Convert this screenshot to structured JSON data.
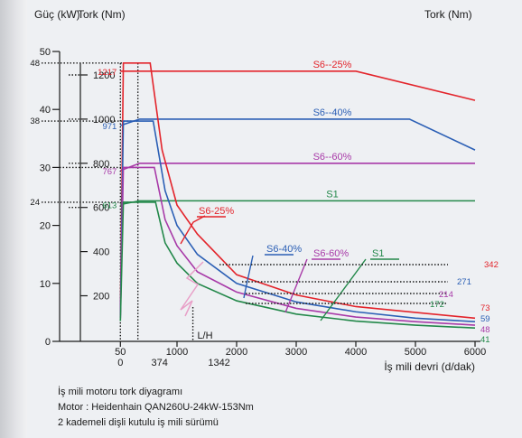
{
  "chart_data": {
    "type": "line",
    "title": "",
    "axes": {
      "left_power": {
        "label": "Güç (kW)",
        "ticks": [
          0,
          10,
          20,
          30,
          40,
          50
        ],
        "extra_ticks": [
          24,
          38,
          48
        ],
        "range": [
          0,
          50
        ]
      },
      "left_torque": {
        "label": "Tork (Nm)",
        "ticks": [
          200,
          400,
          600,
          800,
          1000,
          1200
        ]
      },
      "right_torque": {
        "label": "Tork (Nm)"
      },
      "x": {
        "label": "İş mili devri (d/dak)",
        "ticks": [
          50,
          1000,
          2000,
          3000,
          4000,
          5000,
          6000
        ],
        "range": [
          0,
          6000
        ],
        "sub_ticks": [
          "0",
          "374",
          "1342"
        ],
        "gear_mark": "L/H"
      }
    },
    "colors": {
      "S6-25%": "#e3242b",
      "S6-40%": "#2b5fb5",
      "S6-60%": "#a83aa8",
      "S1": "#23884a"
    },
    "torque_series": [
      {
        "name": "S6--25%",
        "color": "#e3242b",
        "start_torque": 1217,
        "end_torque": 342,
        "x": [
          50,
          374,
          4000,
          6000
        ],
        "y": [
          1217,
          1217,
          1217,
          1085
        ]
      },
      {
        "name": "S6--40%",
        "color": "#2b5fb5",
        "start_torque": 971,
        "end_torque": 271,
        "x": [
          50,
          374,
          4900,
          6000
        ],
        "y": [
          971,
          1000,
          1000,
          860
        ]
      },
      {
        "name": "S6--60%",
        "color": "#a83aa8",
        "start_torque": 767,
        "end_torque": 214,
        "x": [
          50,
          374,
          6000
        ],
        "y": [
          767,
          800,
          800
        ]
      },
      {
        "name": "S1",
        "color": "#23884a",
        "start_torque": 613,
        "end_torque": 172,
        "x": [
          50,
          374,
          6000
        ],
        "y": [
          613,
          630,
          630
        ]
      }
    ],
    "power_series": [
      {
        "name": "S6-25%",
        "color": "#e3242b",
        "end_power": 73,
        "x": [
          50,
          100,
          374,
          550,
          750,
          1000,
          1342,
          2000,
          3000,
          4000,
          5000,
          6000
        ],
        "y": [
          5,
          48,
          48,
          48,
          33,
          23.5,
          18.5,
          11.5,
          8,
          6,
          5,
          4
        ]
      },
      {
        "name": "S6-40%",
        "color": "#2b5fb5",
        "end_power": 59,
        "x": [
          50,
          100,
          374,
          600,
          800,
          1000,
          1342,
          2000,
          3000,
          4000,
          5000,
          6000
        ],
        "y": [
          4.5,
          38,
          38,
          38,
          26,
          20,
          15,
          10,
          6.8,
          5.1,
          4,
          3.4
        ]
      },
      {
        "name": "S6-60%",
        "color": "#a83aa8",
        "end_power": 48,
        "x": [
          50,
          100,
          374,
          620,
          800,
          1000,
          1342,
          2000,
          3000,
          4000,
          5000,
          6000
        ],
        "y": [
          4,
          30,
          30,
          30,
          21,
          16.5,
          12,
          8.5,
          5.7,
          4.2,
          3.4,
          2.8
        ]
      },
      {
        "name": "S1",
        "color": "#23884a",
        "end_power": 41,
        "x": [
          50,
          100,
          374,
          640,
          800,
          1000,
          1342,
          2000,
          3000,
          4000,
          5000,
          6000
        ],
        "y": [
          3.5,
          24,
          24,
          24,
          17,
          13.5,
          10,
          7,
          4.7,
          3.5,
          2.8,
          2.3
        ]
      }
    ],
    "curve_labels": [
      {
        "text": "S6-25%",
        "color": "#e3242b"
      },
      {
        "text": "S6-40%",
        "color": "#2b5fb5"
      },
      {
        "text": "S6-60%",
        "color": "#a83aa8"
      },
      {
        "text": "S1",
        "color": "#23884a"
      }
    ],
    "right_labels": [
      {
        "text": "342",
        "color": "#e3242b"
      },
      {
        "text": "271",
        "color": "#2b5fb5"
      },
      {
        "text": "214",
        "color": "#a83aa8"
      },
      {
        "text": "172",
        "color": "#23884a"
      },
      {
        "text": "73",
        "color": "#e3242b"
      },
      {
        "text": "59",
        "color": "#2b5fb5"
      },
      {
        "text": "48",
        "color": "#a83aa8"
      },
      {
        "text": "41",
        "color": "#23884a"
      }
    ]
  },
  "caption": {
    "line1": "İş mili motoru tork diyagramı",
    "line2": "Motor : Heidenhain QAN260U-24kW-153Nm",
    "line3": "2 kademeli dişli kutulu iş mili sürümü"
  }
}
